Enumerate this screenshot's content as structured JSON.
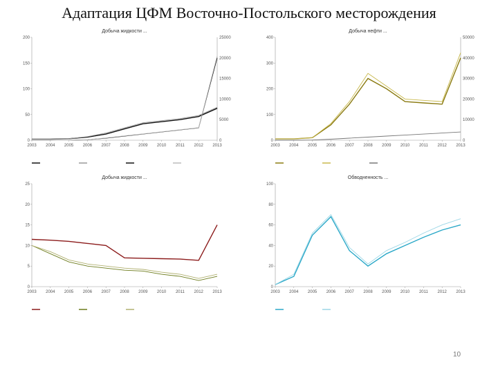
{
  "slide": {
    "title": "Адаптация ЦФМ Восточно-Постольского месторождения",
    "page_number": "10"
  },
  "chart_data": [
    {
      "type": "line",
      "title": "Добыча жидкости ...",
      "y_ticks": [
        "200",
        "150",
        "100",
        "50",
        "0"
      ],
      "y2_ticks": [
        "25000",
        "20000",
        "15000",
        "10000",
        "5000",
        "0"
      ],
      "x": [
        2003,
        2004,
        2005,
        2006,
        2007,
        2008,
        2009,
        2010,
        2011,
        2012,
        2013
      ],
      "x_tick_labels": [
        "2003",
        "2004",
        "2005",
        "2006",
        "2007",
        "2008",
        "2009",
        "2010",
        "2011",
        "2012",
        "2013"
      ],
      "ylim": [
        0,
        200
      ],
      "y2lim": [
        0,
        25000
      ],
      "series": [
        {
          "color": "#111111",
          "values": [
            2,
            2,
            3,
            6,
            12,
            22,
            32,
            36,
            40,
            46,
            62
          ]
        },
        {
          "color": "#999999",
          "values": [
            2,
            2,
            3,
            7,
            14,
            24,
            34,
            38,
            42,
            48,
            64
          ]
        },
        {
          "color": "#111111",
          "values": [
            0,
            0,
            0,
            100,
            500,
            1000,
            1500,
            2000,
            2500,
            3000,
            20000
          ]
        },
        {
          "color": "#bbbbbb",
          "values": [
            0,
            0,
            0,
            100,
            550,
            1050,
            1550,
            2050,
            2550,
            3050,
            20500
          ]
        }
      ]
    },
    {
      "type": "line",
      "title": "Добыча нефти ...",
      "y_ticks": [
        "400",
        "300",
        "200",
        "100",
        "0"
      ],
      "y2_ticks": [
        "50000",
        "40000",
        "30000",
        "20000",
        "10000",
        "0"
      ],
      "x": [
        2003,
        2004,
        2005,
        2006,
        2007,
        2008,
        2009,
        2010,
        2011,
        2012,
        2013
      ],
      "x_tick_labels": [
        "2003",
        "2004",
        "2005",
        "2006",
        "2007",
        "2008",
        "2009",
        "2010",
        "2011",
        "2012",
        "2013"
      ],
      "ylim": [
        0,
        400
      ],
      "y2lim": [
        0,
        50000
      ],
      "series": [
        {
          "color": "#8a7a10",
          "values": [
            5,
            5,
            10,
            60,
            140,
            240,
            200,
            150,
            145,
            140,
            320
          ]
        },
        {
          "color": "#c8b84a",
          "values": [
            5,
            5,
            10,
            65,
            150,
            260,
            210,
            160,
            155,
            150,
            340
          ]
        },
        {
          "color": "#777777",
          "values": [
            0,
            0,
            100,
            500,
            1000,
            1500,
            2000,
            2500,
            3000,
            3500,
            4000
          ]
        }
      ]
    },
    {
      "type": "line",
      "title": "Добыча жидкости ...",
      "y_ticks": [
        "25",
        "20",
        "15",
        "10",
        "5",
        "0"
      ],
      "x": [
        2003,
        2004,
        2005,
        2006,
        2007,
        2008,
        2009,
        2010,
        2011,
        2012,
        2013
      ],
      "x_tick_labels": [
        "2003",
        "2004",
        "2005",
        "2006",
        "2007",
        "2008",
        "2009",
        "2010",
        "2011",
        "2012",
        "2013"
      ],
      "ylim": [
        0,
        25
      ],
      "series": [
        {
          "color": "#8b1a1a",
          "values": [
            11.5,
            11.3,
            11.0,
            10.5,
            10.0,
            7.0,
            6.9,
            6.8,
            6.7,
            6.4,
            15
          ]
        },
        {
          "color": "#6b7a1a",
          "values": [
            10.0,
            8.0,
            6.0,
            5.0,
            4.5,
            4.0,
            3.8,
            3.0,
            2.5,
            1.5,
            2.5
          ]
        },
        {
          "color": "#b0b070",
          "values": [
            10.0,
            8.5,
            6.5,
            5.5,
            5.0,
            4.5,
            4.2,
            3.5,
            3.0,
            2.0,
            3.0
          ]
        }
      ]
    },
    {
      "type": "line",
      "title": "Обводненность ...",
      "y_ticks": [
        "100",
        "80",
        "60",
        "40",
        "20",
        "0"
      ],
      "x": [
        2003,
        2004,
        2005,
        2006,
        2007,
        2008,
        2009,
        2010,
        2011,
        2012,
        2013
      ],
      "x_tick_labels": [
        "2003",
        "2004",
        "2005",
        "2006",
        "2007",
        "2008",
        "2009",
        "2010",
        "2011",
        "2012",
        "2013"
      ],
      "ylim": [
        0,
        100
      ],
      "series": [
        {
          "color": "#2aa8c8",
          "values": [
            2,
            10,
            50,
            68,
            35,
            20,
            32,
            40,
            48,
            55,
            60
          ]
        },
        {
          "color": "#9ad6e6",
          "values": [
            2,
            12,
            52,
            70,
            38,
            22,
            35,
            43,
            52,
            60,
            66
          ]
        }
      ]
    }
  ]
}
